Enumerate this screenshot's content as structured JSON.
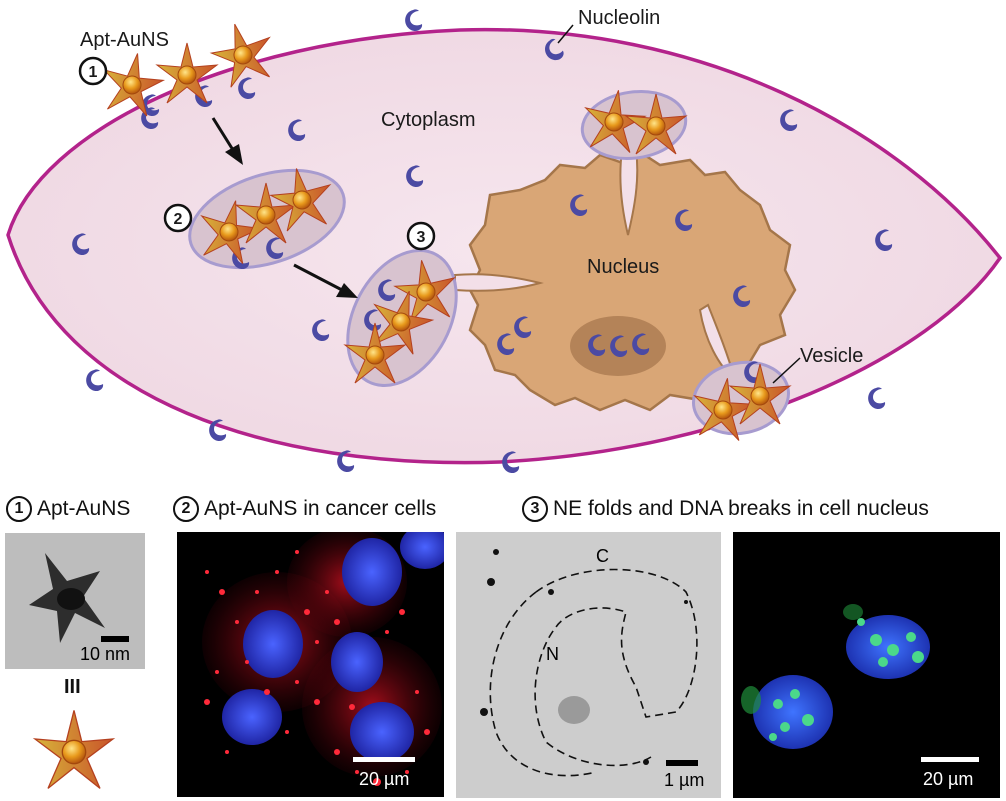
{
  "diagram": {
    "labels": {
      "apt_aunf": "Apt-AuNS",
      "nucleolin": "Nucleolin",
      "cytoplasm": "Cytoplasm",
      "nucleus": "Nucleus",
      "vesicle": "Vesicle"
    },
    "steps": [
      "1",
      "2",
      "3"
    ]
  },
  "panels": {
    "p1": {
      "step": "1",
      "title": "Apt-AuNS",
      "scale": "10 nm",
      "equiv": "III"
    },
    "p2": {
      "step": "2",
      "title": "Apt-AuNS in cancer cells",
      "scale": "20 µm"
    },
    "p3": {
      "step": "3",
      "title": "NE folds and DNA breaks in cell nucleus",
      "tem_scale": "1 µm",
      "tem_label_c": "C",
      "tem_label_n": "N",
      "fluor_scale": "20 µm"
    }
  },
  "colors": {
    "cell_fill": "#f3dfe8",
    "cell_border": "#b3238b",
    "nucleus_fill": "#d9a676",
    "nucleus_border": "#a5764a",
    "nucleolin": "#4b4aa3",
    "vesicle_fill": "#d8c3cf",
    "vesicle_border": "#a79bcf"
  }
}
